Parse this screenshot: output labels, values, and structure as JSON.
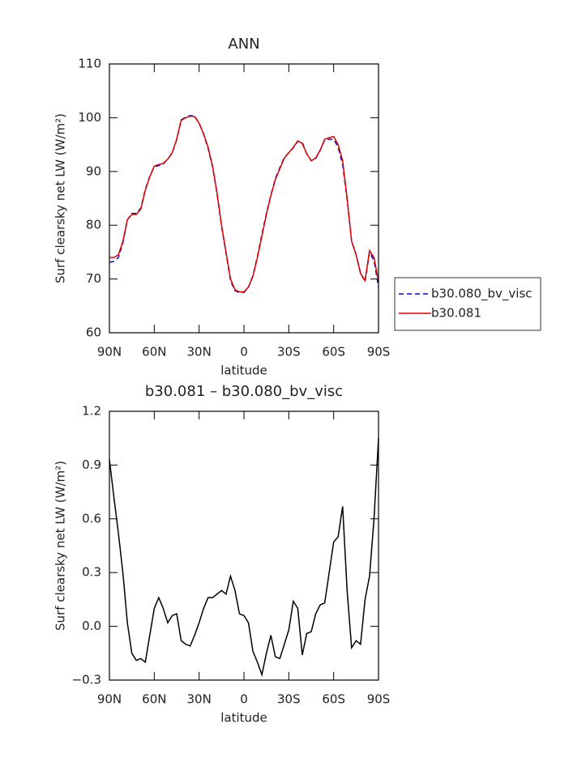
{
  "chart_data": [
    {
      "type": "line",
      "title": "ANN",
      "xlabel": "latitude",
      "ylabel": "Surf clearsky net LW (W/m²)",
      "x": [
        90,
        87,
        84,
        81,
        78,
        75,
        72,
        69,
        66,
        63,
        60,
        57,
        54,
        51,
        48,
        45,
        42,
        39,
        36,
        33,
        30,
        27,
        24,
        21,
        18,
        15,
        12,
        9,
        6,
        3,
        0,
        -3,
        -6,
        -9,
        -12,
        -15,
        -18,
        -21,
        -24,
        -27,
        -30,
        -33,
        -36,
        -39,
        -42,
        -45,
        -48,
        -51,
        -54,
        -57,
        -60,
        -63,
        -66,
        -69,
        -72,
        -75,
        -78,
        -81,
        -84,
        -87,
        -90
      ],
      "series": [
        {
          "name": "b30.080_bv_visc",
          "color": "#0000cc",
          "line_style": "dashed",
          "values": [
            73.1,
            73.3,
            74.0,
            76.7,
            81.0,
            82.2,
            82.2,
            83.2,
            86.7,
            89.1,
            90.9,
            91.1,
            91.4,
            92.3,
            93.4,
            95.9,
            99.6,
            100.1,
            100.4,
            100.3,
            99.0,
            96.9,
            94.3,
            90.8,
            85.8,
            79.8,
            74.8,
            69.7,
            67.8,
            67.5,
            67.5,
            68.5,
            70.6,
            74.2,
            78.3,
            82.2,
            85.6,
            88.7,
            90.7,
            92.6,
            93.5,
            94.4,
            95.6,
            95.4,
            93.3,
            92.0,
            92.4,
            93.9,
            95.9,
            96.0,
            96.0,
            94.5,
            91.3,
            84.8,
            77.1,
            74.6,
            71.1,
            69.5,
            75.0,
            73.4,
            68.5
          ]
        },
        {
          "name": "b30.081",
          "color": "#e00000",
          "line_style": "solid",
          "values": [
            74.0,
            74.0,
            74.5,
            77.0,
            81.0,
            82.0,
            82.0,
            83.0,
            86.5,
            89.0,
            91.0,
            91.3,
            91.5,
            92.3,
            93.5,
            96.0,
            99.5,
            100.0,
            100.3,
            100.2,
            99.0,
            97.0,
            94.5,
            91.0,
            86.0,
            80.0,
            75.0,
            70.0,
            68.0,
            67.6,
            67.6,
            68.5,
            70.5,
            74.0,
            78.0,
            82.0,
            85.5,
            88.5,
            90.5,
            92.5,
            93.5,
            94.5,
            95.7,
            95.2,
            93.3,
            92.0,
            92.5,
            94.0,
            96.0,
            96.3,
            96.5,
            95.0,
            92.0,
            85.0,
            77.0,
            74.5,
            71.0,
            69.7,
            75.3,
            74.0,
            69.5
          ]
        }
      ],
      "xlim": [
        90,
        -90
      ],
      "xticks": [
        {
          "value": 90,
          "label": "90N"
        },
        {
          "value": 60,
          "label": "60N"
        },
        {
          "value": 30,
          "label": "30N"
        },
        0,
        {
          "value": -30,
          "label": "30S"
        },
        {
          "value": -60,
          "label": "60S"
        },
        {
          "value": -90,
          "label": "90S"
        }
      ],
      "ylim": [
        60,
        110
      ],
      "yticks": [
        60,
        70,
        80,
        90,
        100,
        110
      ],
      "legend": "right"
    },
    {
      "type": "line",
      "title": "b30.081 – b30.080_bv_visc",
      "xlabel": "latitude",
      "ylabel": "Surf clearsky net LW (W/m²)",
      "x": [
        90,
        87,
        84,
        81,
        78,
        75,
        72,
        69,
        66,
        63,
        60,
        57,
        54,
        51,
        48,
        45,
        42,
        39,
        36,
        33,
        30,
        27,
        24,
        21,
        18,
        15,
        12,
        9,
        6,
        3,
        0,
        -3,
        -6,
        -9,
        -12,
        -15,
        -18,
        -21,
        -24,
        -27,
        -30,
        -33,
        -36,
        -39,
        -42,
        -45,
        -48,
        -51,
        -54,
        -57,
        -60,
        -63,
        -66,
        -69,
        -72,
        -75,
        -78,
        -81,
        -84,
        -87,
        -90
      ],
      "values": [
        0.93,
        0.72,
        0.52,
        0.3,
        0.02,
        -0.15,
        -0.19,
        -0.18,
        -0.2,
        -0.05,
        0.1,
        0.16,
        0.1,
        0.02,
        0.06,
        0.07,
        -0.08,
        -0.1,
        -0.11,
        -0.05,
        0.02,
        0.1,
        0.16,
        0.16,
        0.18,
        0.2,
        0.18,
        0.28,
        0.2,
        0.07,
        0.06,
        0.02,
        -0.14,
        -0.2,
        -0.27,
        -0.15,
        -0.05,
        -0.17,
        -0.18,
        -0.1,
        -0.02,
        0.14,
        0.1,
        -0.16,
        -0.04,
        -0.03,
        0.07,
        0.12,
        0.13,
        0.3,
        0.47,
        0.5,
        0.67,
        0.2,
        -0.12,
        -0.08,
        -0.1,
        0.15,
        0.28,
        0.6,
        1.05
      ],
      "color": "#000000",
      "xlim": [
        90,
        -90
      ],
      "xticks": [
        {
          "value": 90,
          "label": "90N"
        },
        {
          "value": 60,
          "label": "60N"
        },
        {
          "value": 30,
          "label": "30N"
        },
        0,
        {
          "value": -30,
          "label": "30S"
        },
        {
          "value": -60,
          "label": "60S"
        },
        {
          "value": -90,
          "label": "90S"
        }
      ],
      "ylim": [
        -0.3,
        1.2
      ],
      "yticks": [
        {
          "value": -0.3,
          "label": "−0.3"
        },
        {
          "value": 0,
          "label": "0.0"
        },
        0.3,
        0.6,
        0.9,
        1.2
      ]
    }
  ]
}
